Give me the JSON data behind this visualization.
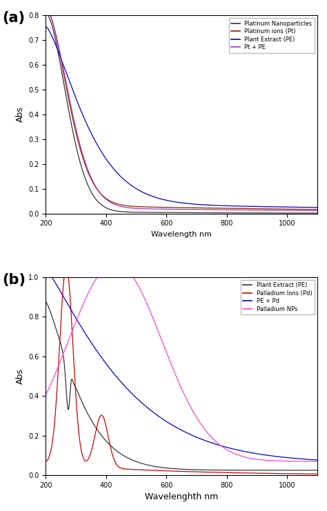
{
  "panel_a": {
    "label": "(a)",
    "xlabel": "Wavelength nm",
    "ylabel": "Abs",
    "xlim": [
      200,
      1100
    ],
    "ylim": [
      0.0,
      0.8
    ],
    "yticks": [
      0.0,
      0.1,
      0.2,
      0.3,
      0.4,
      0.5,
      0.6,
      0.7,
      0.8
    ],
    "xticks": [
      200,
      400,
      600,
      800,
      1000
    ],
    "legend": [
      {
        "label": "Platinum Nanoparticles",
        "color": "#333333"
      },
      {
        "label": "Platinum ions (Pt)",
        "color": "#8B2000"
      },
      {
        "label": "Plant Extract (PE)",
        "color": "#0000CC"
      },
      {
        "label": "Pt + PE",
        "color": "#AA33AA"
      }
    ]
  },
  "panel_b": {
    "label": "(b)",
    "xlabel": "Wavelenghth nm",
    "ylabel": "Abs",
    "xlim": [
      200,
      1100
    ],
    "ylim": [
      0.0,
      1.0
    ],
    "yticks": [
      0.0,
      0.2,
      0.4,
      0.6,
      0.8,
      1.0
    ],
    "xticks": [
      200,
      400,
      600,
      800,
      1000
    ],
    "legend": [
      {
        "label": "Plant Extract (PE)",
        "color": "#333333"
      },
      {
        "label": "Palladium Ions (Pd)",
        "color": "#CC0000"
      },
      {
        "label": "PE + Pd",
        "color": "#0000CC"
      },
      {
        "label": "Palladium NPs",
        "color": "#FF44CC"
      }
    ]
  }
}
